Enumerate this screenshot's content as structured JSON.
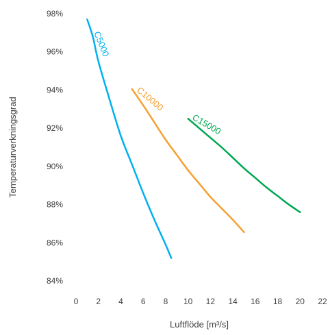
{
  "chart_data": {
    "type": "line",
    "xlabel": "Luftflöde [m³/s]",
    "ylabel": "Temperaturverkningsgrad",
    "xlim": [
      0,
      22
    ],
    "ylim": [
      84,
      98
    ],
    "x_ticks": [
      0,
      2,
      4,
      6,
      8,
      10,
      12,
      14,
      16,
      18,
      20,
      22
    ],
    "x_tick_labels": [
      "0",
      "2",
      "4",
      "6",
      "8",
      "10",
      "12",
      "14",
      "16",
      "18",
      "20",
      "22"
    ],
    "y_ticks": [
      84,
      86,
      88,
      90,
      92,
      94,
      96,
      98
    ],
    "y_tick_labels": [
      "84%",
      "86%",
      "88%",
      "90%",
      "92%",
      "94%",
      "96%",
      "98%"
    ],
    "grid": false,
    "legend": "none",
    "series": [
      {
        "name": "C5000",
        "color": "#00B0F0",
        "points": [
          [
            1.0,
            97.7
          ],
          [
            1.5,
            96.8
          ],
          [
            2.0,
            95.5
          ],
          [
            3.0,
            93.5
          ],
          [
            4.0,
            91.6
          ],
          [
            5.0,
            90.1
          ],
          [
            6.0,
            88.6
          ],
          [
            7.0,
            87.2
          ],
          [
            8.0,
            85.9
          ],
          [
            8.5,
            85.2
          ]
        ]
      },
      {
        "name": "C10000",
        "color": "#F5A030",
        "points": [
          [
            5.0,
            94.05
          ],
          [
            6.0,
            93.2
          ],
          [
            7.0,
            92.3
          ],
          [
            8.0,
            91.4
          ],
          [
            9.0,
            90.6
          ],
          [
            10.0,
            89.8
          ],
          [
            11.0,
            89.1
          ],
          [
            12.0,
            88.4
          ],
          [
            13.0,
            87.8
          ],
          [
            14.0,
            87.2
          ],
          [
            15.0,
            86.55
          ]
        ]
      },
      {
        "name": "C15000",
        "color": "#00A651",
        "points": [
          [
            10.0,
            92.5
          ],
          [
            11.0,
            92.0
          ],
          [
            12.0,
            91.5
          ],
          [
            13.0,
            91.0
          ],
          [
            14.0,
            90.45
          ],
          [
            15.0,
            89.9
          ],
          [
            16.0,
            89.4
          ],
          [
            17.0,
            88.9
          ],
          [
            18.0,
            88.45
          ],
          [
            19.0,
            88.0
          ],
          [
            20.0,
            87.6
          ]
        ]
      }
    ]
  }
}
